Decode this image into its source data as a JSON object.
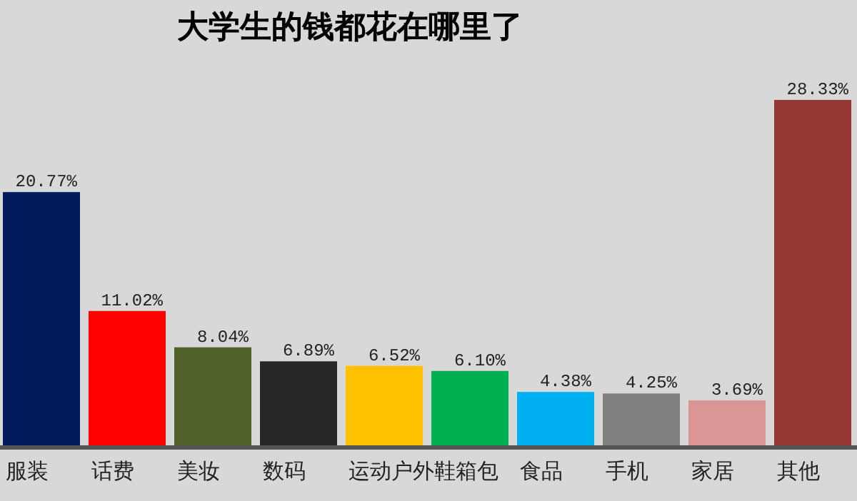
{
  "chart_data": {
    "type": "bar",
    "title": "大学生的钱都花在哪里了",
    "categories": [
      "服装",
      "话费",
      "美妆",
      "数码",
      "运动户外",
      "鞋箱包",
      "食品",
      "手机",
      "家居",
      "其他"
    ],
    "values": [
      20.77,
      11.02,
      8.04,
      6.89,
      6.52,
      6.1,
      4.38,
      4.25,
      3.69,
      28.33
    ],
    "colors": [
      "#001c5c",
      "#ff0000",
      "#4f6128",
      "#262626",
      "#ffc000",
      "#00b050",
      "#00b0f0",
      "#808080",
      "#d99694",
      "#953735"
    ],
    "value_labels": [
      "20.77%",
      "11.02%",
      "8.04%",
      "6.89%",
      "6.52%",
      "6.10%",
      "4.38%",
      "4.25%",
      "3.69%",
      "28.33%"
    ]
  }
}
